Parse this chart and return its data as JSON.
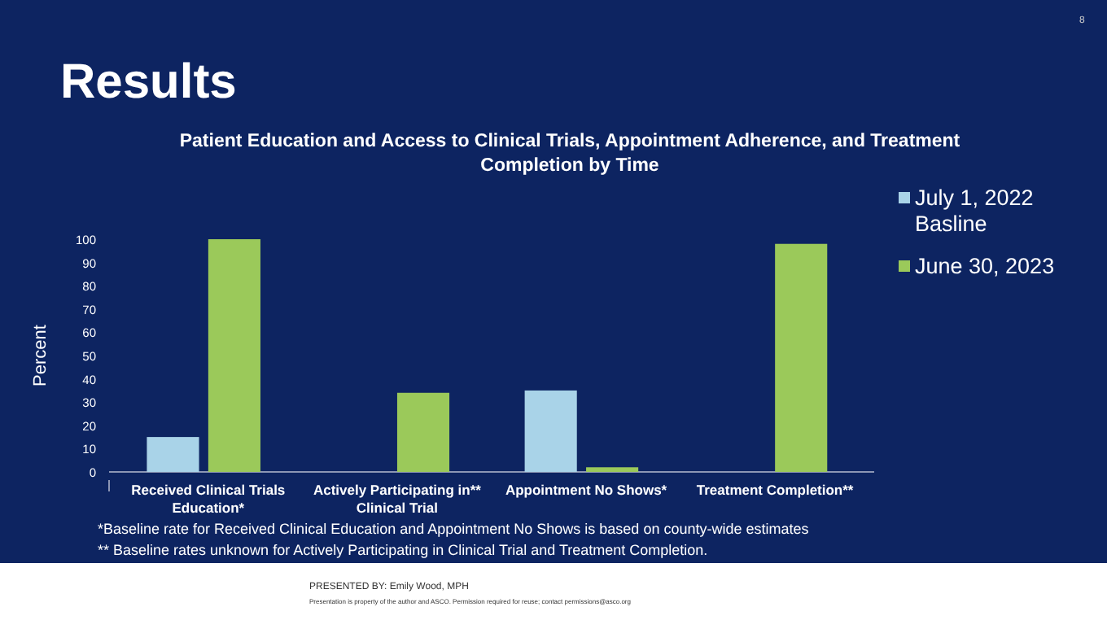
{
  "chart_data": {
    "type": "bar",
    "title": "Results",
    "subtitle": "Patient Education and Access to Clinical Trials, Appointment Adherence, and Treatment Completion by Time",
    "ylabel": "Percent",
    "categories": [
      "Received Clinical Trials Education*",
      "Actively Participating in** Clinical Trial",
      "Appointment No Shows*",
      "Treatment Completion**"
    ],
    "series": [
      {
        "name": "July 1, 2022 Basline",
        "color": "#a9d3e8",
        "values": [
          15,
          null,
          35,
          null
        ]
      },
      {
        "name": "June 30, 2023",
        "color": "#9bc95a",
        "values": [
          100,
          34,
          2,
          98
        ]
      }
    ],
    "ylim": [
      0,
      100
    ],
    "yticks": [
      0,
      10,
      20,
      30,
      40,
      50,
      60,
      70,
      80,
      90,
      100
    ],
    "grid": false,
    "legend": "right",
    "annotations": [
      "*Baseline rate for Received Clinical Education and Appointment No Shows is based on county-wide estimates",
      "** Baseline rates unknown for Actively Participating in Clinical Trial and Treatment Completion.",
      "PRESENTED BY: Emily Wood, MPH",
      "Presentation is property of the author and ASCO. Permission required for reuse; contact permissions@asco.org",
      "8"
    ]
  }
}
